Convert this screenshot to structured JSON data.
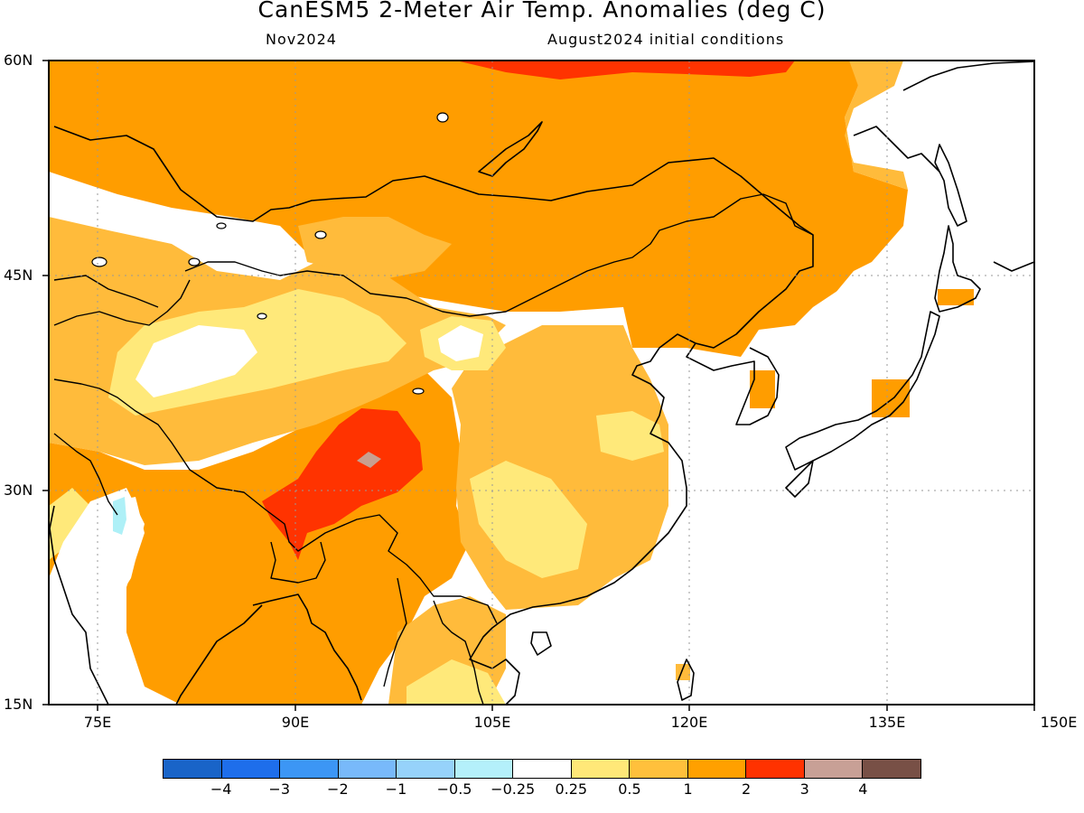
{
  "title": "CanESM5 2-Meter Air Temp. Anomalies (deg C)",
  "subtitle_left": "Nov2024",
  "subtitle_right": "August2024 initial conditions",
  "lat_labels": [
    "60N",
    "45N",
    "30N",
    "15N"
  ],
  "lon_labels": [
    "75E",
    "90E",
    "105E",
    "120E",
    "135E",
    "150E"
  ],
  "map_region": {
    "lon_range": [
      70,
      150
    ],
    "lat_range": [
      15,
      60
    ],
    "grid_lon": [
      75,
      90,
      105,
      120,
      135
    ],
    "grid_lat": [
      45,
      30
    ]
  },
  "anomaly_regions": [
    {
      "category": "2 to 3",
      "color": "#ff3300",
      "area": "central Tibetan Plateau"
    },
    {
      "category": "2 to 3",
      "color": "#ff3300",
      "area": "near Lake Baikal (northern edge)"
    },
    {
      "category": "3 to 4",
      "color": "#c8a090",
      "area": "small spot on Tibetan Plateau"
    },
    {
      "category": "1 to 2",
      "color": "#ff9d00",
      "area": "Mongolia, northern China, Siberia, India, northern Indochina"
    },
    {
      "category": "0.5 to 1",
      "color": "#ffbb3b",
      "area": "Central Asia, southern China, Korea/Japan edges"
    },
    {
      "category": "0.25 to 0.5",
      "color": "#ffe97a",
      "area": "Tarim Basin margins, Sichuan, Indochina"
    },
    {
      "category": "-0.25 to 0.25",
      "color": "#ffffff",
      "area": "Taklamakan, western India, ocean"
    },
    {
      "category": "-0.5 to -0.25",
      "color": "#aef0f7",
      "area": "small spot over western India"
    }
  ],
  "colorbar": {
    "colors": [
      "#1964c8",
      "#1e6eeb",
      "#3c96f5",
      "#78b9fa",
      "#96d2fa",
      "#b4f0fa",
      "#ffffff",
      "#ffe878",
      "#ffc03c",
      "#ffa000",
      "#ff3200",
      "#c8a096",
      "#785046"
    ],
    "labels": [
      "−4",
      "−3",
      "−2",
      "−1",
      "−0.5",
      "−0.25",
      "0.25",
      "0.5",
      "1",
      "2",
      "3",
      "4"
    ]
  }
}
